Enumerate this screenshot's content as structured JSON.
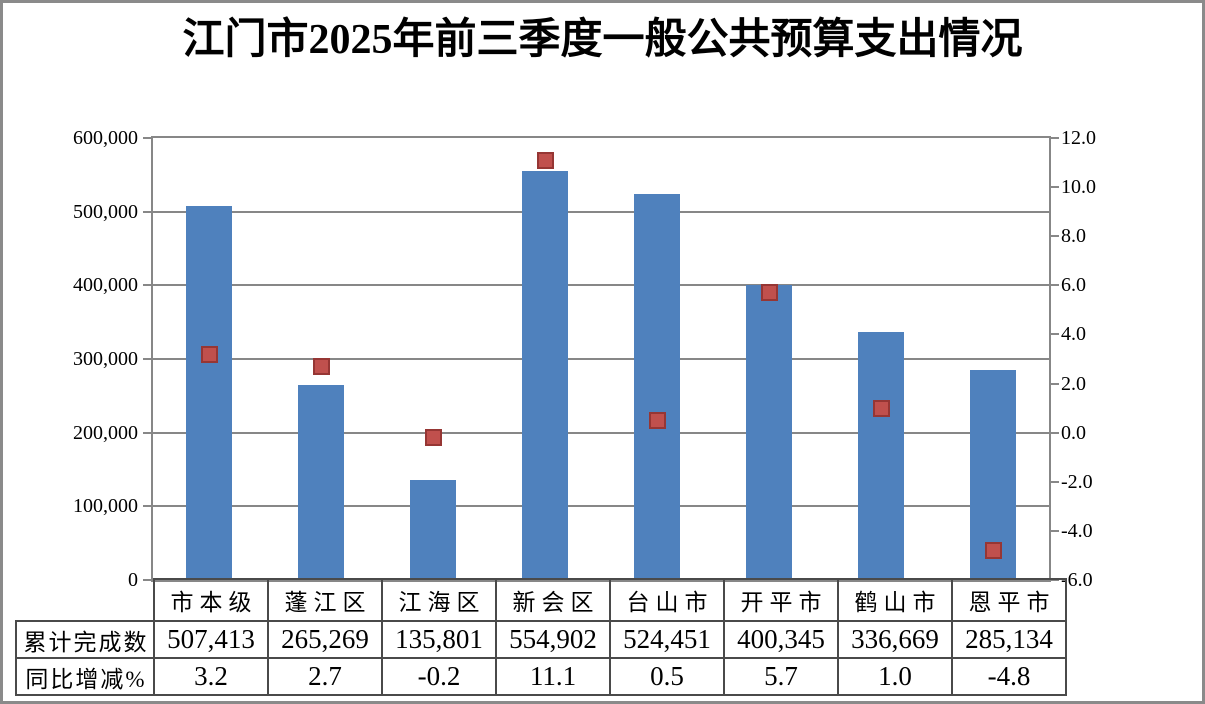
{
  "chart_data": {
    "type": "bar",
    "title": "江门市2025年前三季度一般公共预算支出情况",
    "categories": [
      "市本级",
      "蓬江区",
      "江海区",
      "新会区",
      "台山市",
      "开平市",
      "鹤山市",
      "恩平市"
    ],
    "series": [
      {
        "name": "累计完成数",
        "type": "bar",
        "axis": "left",
        "color": "#4F81BD",
        "values": [
          507413,
          265269,
          135801,
          554902,
          524451,
          400345,
          336669,
          285134
        ]
      },
      {
        "name": "同比增减%",
        "type": "scatter",
        "marker": "square",
        "axis": "right",
        "color": "#C0504D",
        "values": [
          3.2,
          2.7,
          -0.2,
          11.1,
          0.5,
          5.7,
          1.0,
          -4.8
        ]
      }
    ],
    "y_left": {
      "min": 0,
      "max": 600000,
      "step": 100000,
      "tick_labels": [
        "600,000",
        "500,000",
        "400,000",
        "300,000",
        "200,000",
        "100,000",
        "0"
      ]
    },
    "y_right": {
      "min": -6.0,
      "max": 12.0,
      "step": 2.0,
      "tick_labels": [
        "12.0",
        "10.0",
        "8.0",
        "6.0",
        "4.0",
        "2.0",
        "0.0",
        "-2.0",
        "-4.0",
        "-6.0"
      ]
    },
    "grid": "horizontal-major",
    "legend": "none"
  },
  "table": {
    "row_headers": [
      "累计完成数",
      "同比增减%"
    ],
    "columns": [
      "市本级",
      "蓬江区",
      "江海区",
      "新会区",
      "台山市",
      "开平市",
      "鹤山市",
      "恩平市"
    ],
    "rows": [
      [
        "507,413",
        "265,269",
        "135,801",
        "554,902",
        "524,451",
        "400,345",
        "336,669",
        "285,134"
      ],
      [
        "3.2",
        "2.7",
        "-0.2",
        "11.1",
        "0.5",
        "5.7",
        "1.0",
        "-4.8"
      ]
    ]
  },
  "colors": {
    "bar": "#4F81BD",
    "marker_fill": "#C0504D",
    "marker_border": "#963634",
    "gridline": "#878787",
    "frame": "#8A8A8A",
    "table_border": "#4A4A4A"
  }
}
